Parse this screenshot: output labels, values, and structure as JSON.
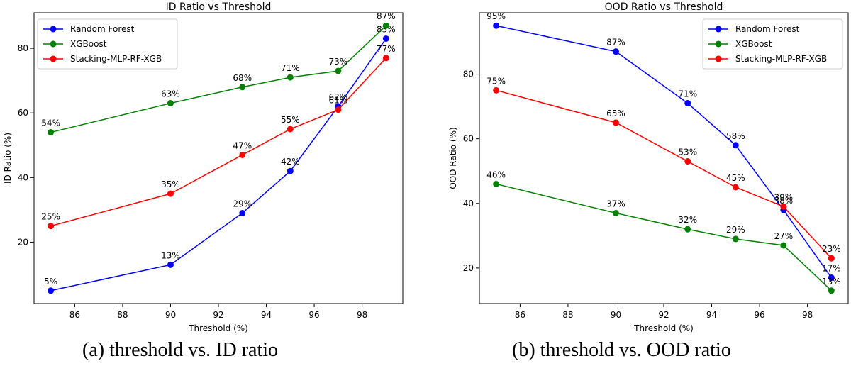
{
  "chart_data": [
    {
      "type": "line",
      "title": "ID Ratio vs Threshold",
      "xlabel": "Threshold (%)",
      "ylabel": "ID Ratio (%)",
      "x": [
        85,
        90,
        93,
        95,
        97,
        99
      ],
      "xlim": [
        84.3,
        99.7
      ],
      "ylim": [
        1,
        91
      ],
      "xticks": [
        86,
        88,
        90,
        92,
        94,
        96,
        98
      ],
      "yticks": [
        20,
        40,
        60,
        80
      ],
      "grid": false,
      "legend": "top-left",
      "series": [
        {
          "name": "Random Forest",
          "color": "#0000ff",
          "values": [
            5,
            13,
            29,
            42,
            62,
            83
          ],
          "labels": [
            "5%",
            "13%",
            "29%",
            "42%",
            "62%",
            "83%"
          ]
        },
        {
          "name": "XGBoost",
          "color": "#008000",
          "values": [
            54,
            63,
            68,
            71,
            73,
            87
          ],
          "labels": [
            "54%",
            "63%",
            "68%",
            "71%",
            "73%",
            "87%"
          ]
        },
        {
          "name": "Stacking-MLP-RF-XGB",
          "color": "#ff0000",
          "values": [
            25,
            35,
            47,
            55,
            61,
            77
          ],
          "labels": [
            "25%",
            "35%",
            "47%",
            "55%",
            "61%",
            "77%"
          ]
        }
      ]
    },
    {
      "type": "line",
      "title": "OOD Ratio vs Threshold",
      "xlabel": "Threshold (%)",
      "ylabel": "OOD Ratio (%)",
      "x": [
        85,
        90,
        93,
        95,
        97,
        99
      ],
      "xlim": [
        84.3,
        99.7
      ],
      "ylim": [
        9,
        99
      ],
      "xticks": [
        86,
        88,
        90,
        92,
        94,
        96,
        98
      ],
      "yticks": [
        20,
        40,
        60,
        80
      ],
      "grid": false,
      "legend": "top-right",
      "series": [
        {
          "name": "Random Forest",
          "color": "#0000ff",
          "values": [
            95,
            87,
            71,
            58,
            38,
            17
          ],
          "labels": [
            "95%",
            "87%",
            "71%",
            "58%",
            "38%",
            "17%"
          ]
        },
        {
          "name": "XGBoost",
          "color": "#008000",
          "values": [
            46,
            37,
            32,
            29,
            27,
            13
          ],
          "labels": [
            "46%",
            "37%",
            "32%",
            "29%",
            "27%",
            "13%"
          ]
        },
        {
          "name": "Stacking-MLP-RF-XGB",
          "color": "#ff0000",
          "values": [
            75,
            65,
            53,
            45,
            39,
            23
          ],
          "labels": [
            "75%",
            "65%",
            "53%",
            "45%",
            "39%",
            "23%"
          ]
        }
      ]
    }
  ],
  "captions": [
    {
      "tag": "(a)",
      "text": "threshold vs. ID ratio"
    },
    {
      "tag": "(b)",
      "text": "threshold vs. OOD ratio"
    }
  ]
}
